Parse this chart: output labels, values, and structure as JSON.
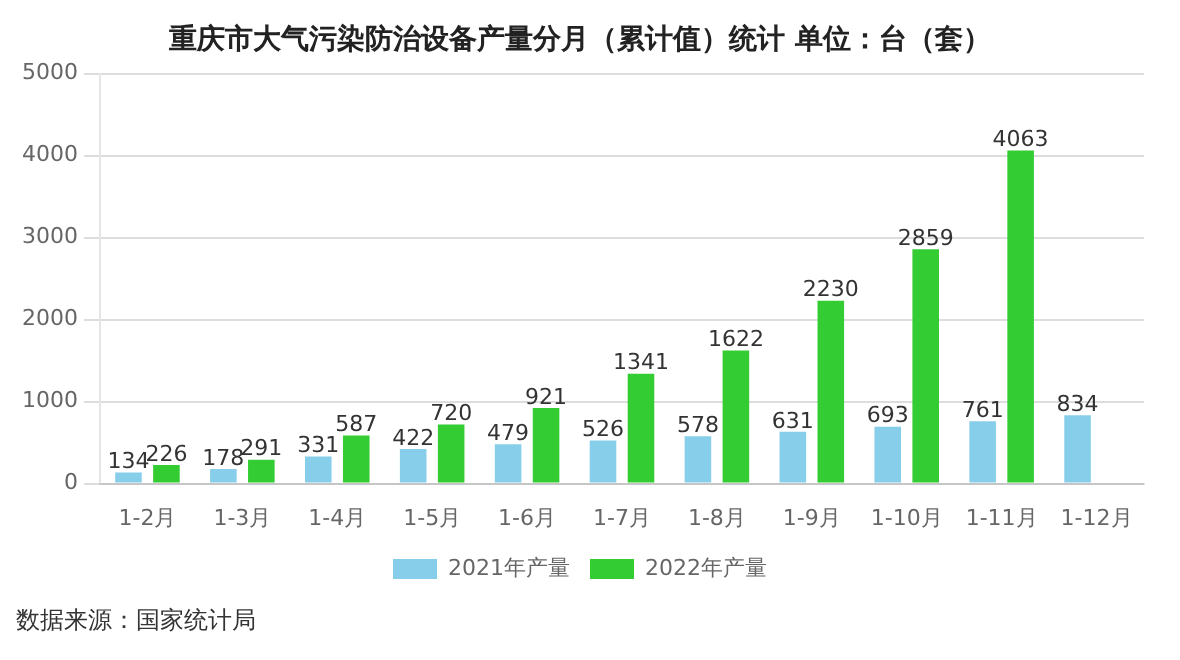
{
  "chart_data": {
    "type": "bar",
    "title": "重庆市大气污染防治设备产量分月（累计值）统计 单位：台（套）",
    "categories": [
      "1-2月",
      "1-3月",
      "1-4月",
      "1-5月",
      "1-6月",
      "1-7月",
      "1-8月",
      "1-9月",
      "1-10月",
      "1-11月",
      "1-12月"
    ],
    "series": [
      {
        "name": "2021年产量",
        "color": "#87ceeb",
        "values": [
          134,
          178,
          331,
          422,
          479,
          526,
          578,
          631,
          693,
          761,
          834
        ]
      },
      {
        "name": "2022年产量",
        "color": "#33cc33",
        "values": [
          226,
          291,
          587,
          720,
          921,
          1341,
          1622,
          2230,
          2859,
          4063,
          null
        ]
      }
    ],
    "ylim": [
      0,
      5000
    ],
    "yticks": [
      0,
      1000,
      2000,
      3000,
      4000,
      5000
    ],
    "grid": "y",
    "legend": "bottom",
    "data_labels": true,
    "annotations": [
      "数据来源：国家统计局"
    ]
  }
}
